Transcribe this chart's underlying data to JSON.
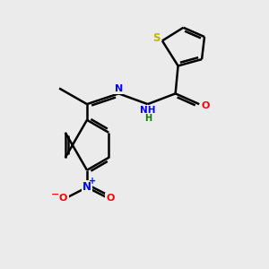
{
  "background_color": "#ebebeb",
  "atom_colors": {
    "S": "#b8b800",
    "N": "#0000ff",
    "O": "#ff0000",
    "C": "#000000",
    "H": "#008000"
  },
  "bond_color": "#000000",
  "bond_width": 1.8,
  "figsize": [
    3.0,
    3.0
  ],
  "dpi": 100,
  "xlim": [
    0,
    10
  ],
  "ylim": [
    0,
    10
  ]
}
